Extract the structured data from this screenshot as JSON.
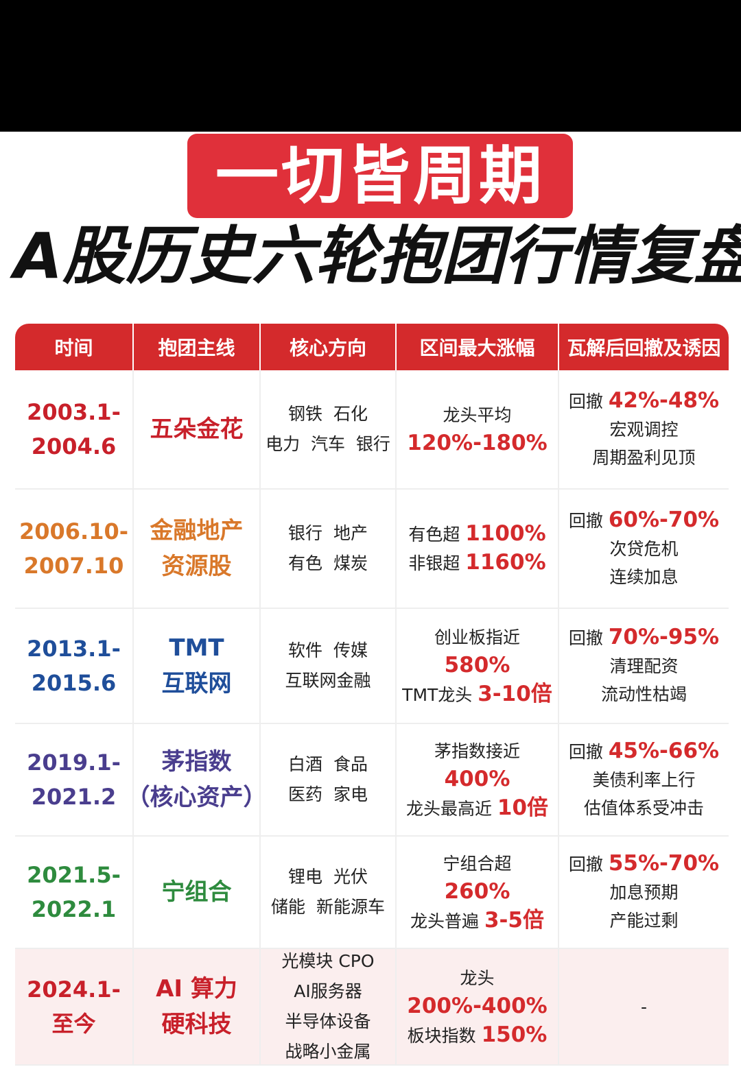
{
  "title": "一切皆周期",
  "subtitle": "A股历史六轮抱团行情复盘",
  "table": {
    "headers": [
      "时间",
      "抱团主线",
      "核心方向",
      "区间最大涨幅",
      "瓦解后回撤及诱因"
    ],
    "rows": [
      {
        "color": "#c8202a",
        "time": [
          "2003.1-",
          "2004.6"
        ],
        "theme": [
          "五朵金花"
        ],
        "core": [
          "钢铁  石化",
          "电力  汽车  银行"
        ],
        "gain": [
          [
            "龙头平均"
          ],
          [
            {
              "text": "120%-180%",
              "red": true
            }
          ]
        ],
        "drawdown": [
          [
            "回撤 ",
            {
              "text": "42%-48%",
              "red": true
            }
          ],
          [
            "宏观调控"
          ],
          [
            "周期盈利见顶"
          ]
        ]
      },
      {
        "color": "#d9782a",
        "time": [
          "2006.10-",
          "2007.10"
        ],
        "theme": [
          "金融地产",
          "资源股"
        ],
        "core": [
          "银行  地产",
          "有色  煤炭"
        ],
        "gain": [
          [
            "有色超 ",
            {
              "text": "1100%",
              "red": true
            }
          ],
          [
            "非银超 ",
            {
              "text": "1160%",
              "red": true
            }
          ]
        ],
        "drawdown": [
          [
            "回撤 ",
            {
              "text": "60%-70%",
              "red": true
            }
          ],
          [
            "次贷危机"
          ],
          [
            "连续加息"
          ]
        ]
      },
      {
        "color": "#1f4e9a",
        "time": [
          "2013.1-",
          "2015.6"
        ],
        "theme": [
          "TMT",
          "互联网"
        ],
        "core": [
          "软件  传媒",
          "互联网金融"
        ],
        "gain": [
          [
            "创业板指近"
          ],
          [
            {
              "text": "580%",
              "red": true
            }
          ],
          [
            "TMT龙头 ",
            {
              "text": "3-10倍",
              "red": true
            }
          ]
        ],
        "drawdown": [
          [
            "回撤 ",
            {
              "text": "70%-95%",
              "red": true
            }
          ],
          [
            "清理配资"
          ],
          [
            "流动性枯竭"
          ]
        ]
      },
      {
        "color": "#4a3e8e",
        "time": [
          "2019.1-",
          "2021.2"
        ],
        "theme": [
          "茅指数",
          "（核心资产）"
        ],
        "core": [
          "白酒  食品",
          "医药  家电"
        ],
        "gain": [
          [
            "茅指数接近"
          ],
          [
            {
              "text": "400%",
              "red": true
            }
          ],
          [
            "龙头最高近 ",
            {
              "text": "10倍",
              "red": true
            }
          ]
        ],
        "drawdown": [
          [
            "回撤 ",
            {
              "text": "45%-66%",
              "red": true
            }
          ],
          [
            "美债利率上行"
          ],
          [
            "估值体系受冲击"
          ]
        ]
      },
      {
        "color": "#2e8b3e",
        "time": [
          "2021.5-",
          "2022.1"
        ],
        "theme": [
          "宁组合"
        ],
        "core": [
          "锂电  光伏",
          "储能  新能源车"
        ],
        "gain": [
          [
            "宁组合超"
          ],
          [
            {
              "text": "260%",
              "red": true
            }
          ],
          [
            "龙头普遍 ",
            {
              "text": "3-5倍",
              "red": true
            }
          ]
        ],
        "drawdown": [
          [
            "回撤 ",
            {
              "text": "55%-70%",
              "red": true
            }
          ],
          [
            "加息预期"
          ],
          [
            "产能过剩"
          ]
        ]
      },
      {
        "color": "#c8202a",
        "time": [
          "2024.1-",
          "至今"
        ],
        "theme": [
          "AI 算力",
          "硬科技"
        ],
        "core": [
          "光模块 CPO",
          "AI服务器",
          "半导体设备",
          "战略小金属"
        ],
        "gain": [
          [
            "龙头"
          ],
          [
            {
              "text": "200%-400%",
              "red": true
            }
          ],
          [
            "板块指数 ",
            {
              "text": "150%",
              "red": true
            }
          ]
        ],
        "drawdown": [
          [
            "-"
          ]
        ]
      }
    ]
  }
}
